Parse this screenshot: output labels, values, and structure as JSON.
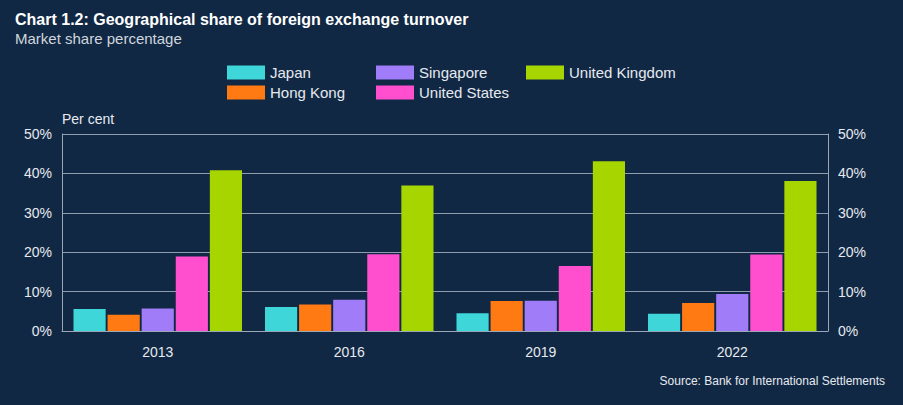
{
  "chart_data": {
    "type": "bar",
    "title": "Chart 1.2: Geographical share of foreign exchange turnover",
    "subtitle": "Market share percentage",
    "y_label": "Per cent",
    "source": "Source: Bank for International Settlements",
    "categories": [
      "2013",
      "2016",
      "2019",
      "2022"
    ],
    "series": [
      {
        "name": "Japan",
        "color": "#3ED6D8",
        "values": [
          5.6,
          6.1,
          4.5,
          4.4
        ]
      },
      {
        "name": "Hong Kong",
        "color": "#FF7A12",
        "values": [
          4.1,
          6.7,
          7.6,
          7.1
        ]
      },
      {
        "name": "Singapore",
        "color": "#A07CF8",
        "values": [
          5.7,
          7.9,
          7.7,
          9.4
        ]
      },
      {
        "name": "United States",
        "color": "#FF4FCF",
        "values": [
          18.9,
          19.5,
          16.5,
          19.4
        ]
      },
      {
        "name": "United Kingdom",
        "color": "#A6D500",
        "values": [
          40.8,
          36.9,
          43.1,
          38.1
        ]
      }
    ],
    "ylim": [
      0,
      50
    ],
    "yticks": [
      {
        "value": 0,
        "label": "0%"
      },
      {
        "value": 10,
        "label": "10%"
      },
      {
        "value": 20,
        "label": "20%"
      },
      {
        "value": 30,
        "label": "30%"
      },
      {
        "value": 40,
        "label": "40%"
      },
      {
        "value": 50,
        "label": "50%"
      }
    ],
    "y2lim": [
      0,
      50
    ],
    "y2ticks": [
      {
        "value": 0,
        "label": "0%"
      },
      {
        "value": 10,
        "label": "10%"
      },
      {
        "value": 20,
        "label": "20%"
      },
      {
        "value": 30,
        "label": "30%"
      },
      {
        "value": 40,
        "label": "40%"
      },
      {
        "value": 50,
        "label": "50%"
      }
    ],
    "grid": true,
    "legend": "top"
  }
}
